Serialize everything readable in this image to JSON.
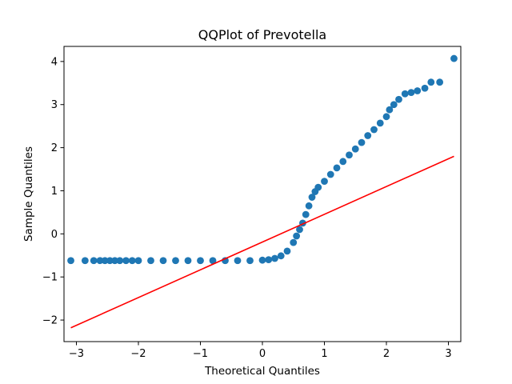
{
  "chart_data": {
    "type": "scatter",
    "title": "QQPlot of Prevotella",
    "xlabel": "Theoretical Quantiles",
    "ylabel": "Sample Quantiles",
    "xlim": [
      -3.2,
      3.2
    ],
    "ylim": [
      -2.5,
      4.35
    ],
    "xticks": [
      -3,
      -2,
      -1,
      0,
      1,
      2,
      3
    ],
    "yticks": [
      -2,
      -1,
      0,
      1,
      2,
      3,
      4
    ],
    "xtick_labels": [
      "−3",
      "−2",
      "−1",
      "0",
      "1",
      "2",
      "3"
    ],
    "ytick_labels": [
      "−2",
      "−1",
      "0",
      "1",
      "2",
      "3",
      "4"
    ],
    "grid": false,
    "legend": "none",
    "colors": {
      "points": "#1f77b4",
      "reference_line": "#ff0000",
      "axes": "#000000"
    },
    "series": [
      {
        "type": "scatter",
        "points": [
          [
            -3.09,
            -0.62
          ],
          [
            -2.86,
            -0.62
          ],
          [
            -2.72,
            -0.62
          ],
          [
            -2.62,
            -0.62
          ],
          [
            -2.54,
            -0.62
          ],
          [
            -2.46,
            -0.62
          ],
          [
            -2.38,
            -0.62
          ],
          [
            -2.3,
            -0.62
          ],
          [
            -2.2,
            -0.62
          ],
          [
            -2.1,
            -0.62
          ],
          [
            -2.0,
            -0.62
          ],
          [
            -1.8,
            -0.62
          ],
          [
            -1.6,
            -0.62
          ],
          [
            -1.4,
            -0.62
          ],
          [
            -1.2,
            -0.62
          ],
          [
            -1.0,
            -0.62
          ],
          [
            -0.8,
            -0.62
          ],
          [
            -0.6,
            -0.62
          ],
          [
            -0.4,
            -0.62
          ],
          [
            -0.2,
            -0.62
          ],
          [
            0.0,
            -0.61
          ],
          [
            0.1,
            -0.6
          ],
          [
            0.2,
            -0.57
          ],
          [
            0.3,
            -0.51
          ],
          [
            0.4,
            -0.4
          ],
          [
            0.5,
            -0.2
          ],
          [
            0.55,
            -0.05
          ],
          [
            0.6,
            0.1
          ],
          [
            0.65,
            0.25
          ],
          [
            0.7,
            0.45
          ],
          [
            0.75,
            0.65
          ],
          [
            0.8,
            0.85
          ],
          [
            0.85,
            0.98
          ],
          [
            0.9,
            1.08
          ],
          [
            1.0,
            1.22
          ],
          [
            1.1,
            1.38
          ],
          [
            1.2,
            1.53
          ],
          [
            1.3,
            1.68
          ],
          [
            1.4,
            1.83
          ],
          [
            1.5,
            1.97
          ],
          [
            1.6,
            2.12
          ],
          [
            1.7,
            2.28
          ],
          [
            1.8,
            2.42
          ],
          [
            1.9,
            2.57
          ],
          [
            2.0,
            2.72
          ],
          [
            2.05,
            2.88
          ],
          [
            2.12,
            3.0
          ],
          [
            2.2,
            3.12
          ],
          [
            2.3,
            3.25
          ],
          [
            2.4,
            3.28
          ],
          [
            2.5,
            3.32
          ],
          [
            2.62,
            3.38
          ],
          [
            2.72,
            3.52
          ],
          [
            2.86,
            3.52
          ],
          [
            3.09,
            4.07
          ]
        ]
      },
      {
        "type": "line",
        "x": [
          -3.09,
          3.09
        ],
        "y": [
          -2.18,
          1.8
        ]
      }
    ]
  }
}
